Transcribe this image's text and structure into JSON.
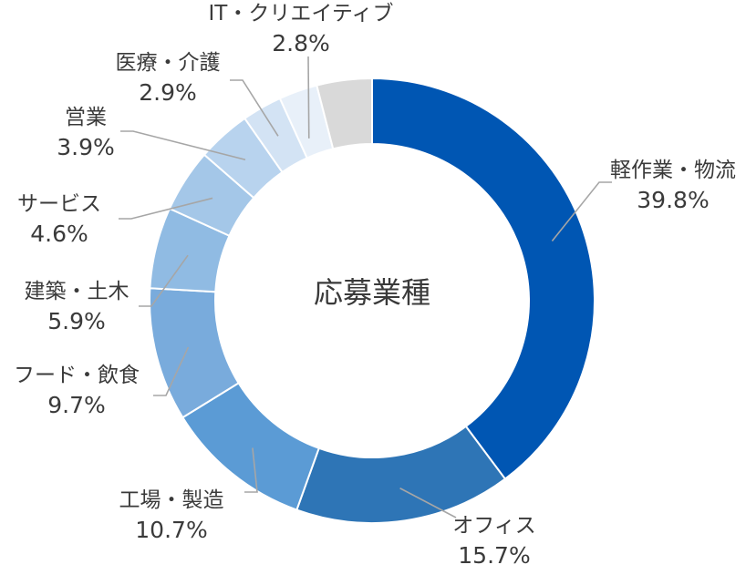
{
  "chart_data": {
    "type": "pie",
    "title": "応募業種",
    "categories": [
      "軽作業・物流",
      "オフィス",
      "工場・製造",
      "フード・飲食",
      "建築・土木",
      "サービス",
      "営業",
      "医療・介護",
      "IT・クリエイティブ",
      ""
    ],
    "values": [
      39.8,
      15.7,
      10.7,
      9.7,
      5.9,
      4.6,
      3.9,
      2.9,
      2.8,
      4.0
    ],
    "labels": [
      "39.8%",
      "15.7%",
      "10.7%",
      "9.7%",
      "5.9%",
      "4.6%",
      "3.9%",
      "2.9%",
      "2.8%",
      ""
    ],
    "colors": [
      "#0056b3",
      "#2e75b6",
      "#5b9bd5",
      "#79abdc",
      "#90bbe3",
      "#a4c7e8",
      "#b8d3ee",
      "#d3e3f4",
      "#e8f0f9",
      "#d9d9d9"
    ],
    "legend": "none",
    "style": "donut"
  }
}
